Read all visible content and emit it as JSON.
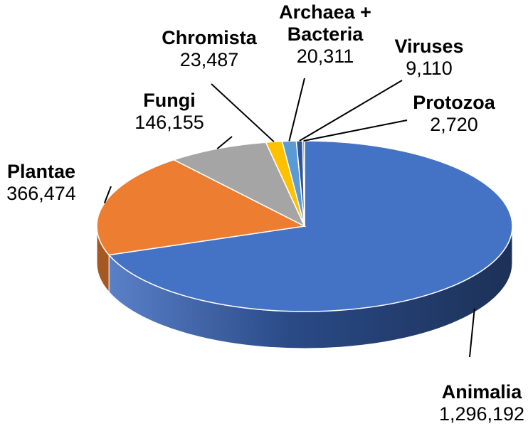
{
  "chart_data": {
    "type": "pie",
    "title": "",
    "style": "3d",
    "slices": [
      {
        "label": "Animalia",
        "value": 1296192,
        "value_label": "1,296,192",
        "color": "#4472C4"
      },
      {
        "label": "Plantae",
        "value": 366474,
        "value_label": "366,474",
        "color": "#ED7D31"
      },
      {
        "label": "Fungi",
        "value": 146155,
        "value_label": "146,155",
        "color": "#A5A5A5"
      },
      {
        "label": "Chromista",
        "value": 23487,
        "value_label": "23,487",
        "color": "#FFC000"
      },
      {
        "label": "Archaea + Bacteria",
        "label_lines": [
          "Archaea +",
          "Bacteria"
        ],
        "value": 20311,
        "value_label": "20,311",
        "color": "#5B9BD5"
      },
      {
        "label": "Viruses",
        "value": 9110,
        "value_label": "9,110",
        "color": "#2F5597"
      },
      {
        "label": "Protozoa",
        "value": 2720,
        "value_label": "2,720",
        "color": "#70AD47"
      }
    ]
  }
}
